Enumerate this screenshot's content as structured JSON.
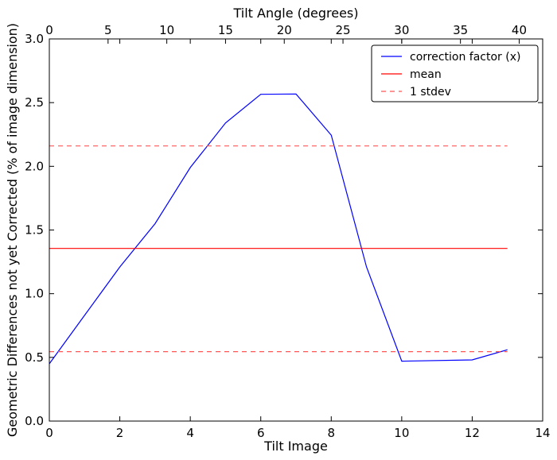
{
  "chart_data": {
    "type": "line",
    "title": "",
    "xlabel": "Tilt Image",
    "ylabel": "Geometric Differences not yet Corrected (% of image dimension)",
    "x2label": "Tilt Angle (degrees)",
    "xlim": [
      0,
      14
    ],
    "ylim": [
      0.0,
      3.0
    ],
    "x2lim": [
      0,
      42
    ],
    "xticks": [
      "0",
      "2",
      "4",
      "6",
      "8",
      "10",
      "12",
      "14"
    ],
    "yticks": [
      "0.0",
      "0.5",
      "1.0",
      "1.5",
      "2.0",
      "2.5",
      "3.0"
    ],
    "x2ticks": [
      "0",
      "5",
      "10",
      "15",
      "20",
      "25",
      "30",
      "35",
      "40"
    ],
    "grid": false,
    "legend_position": "top-right",
    "series": [
      {
        "name": "correction factor (x)",
        "color": "#0000ff",
        "style": "solid",
        "x": [
          0,
          1,
          2,
          3,
          4,
          5,
          6,
          7,
          8,
          9,
          10,
          12,
          13
        ],
        "y": [
          0.45,
          0.83,
          1.21,
          1.55,
          1.99,
          2.34,
          2.565,
          2.568,
          2.245,
          1.21,
          0.47,
          0.48,
          0.56
        ]
      },
      {
        "name": "mean",
        "color": "#ff0000",
        "style": "solid",
        "x": [
          0,
          13
        ],
        "y": [
          1.355,
          1.355
        ]
      },
      {
        "name": "1 stdev",
        "color": "#ff5555",
        "style": "dashed",
        "x": [
          0,
          13
        ],
        "y": [
          2.16,
          2.16
        ]
      },
      {
        "name": "1 stdev lower",
        "color": "#ff5555",
        "style": "dashed",
        "x": [
          0,
          13
        ],
        "y": [
          0.545,
          0.545
        ]
      }
    ],
    "legend": [
      "correction factor (x)",
      "mean",
      "1 stdev"
    ]
  }
}
